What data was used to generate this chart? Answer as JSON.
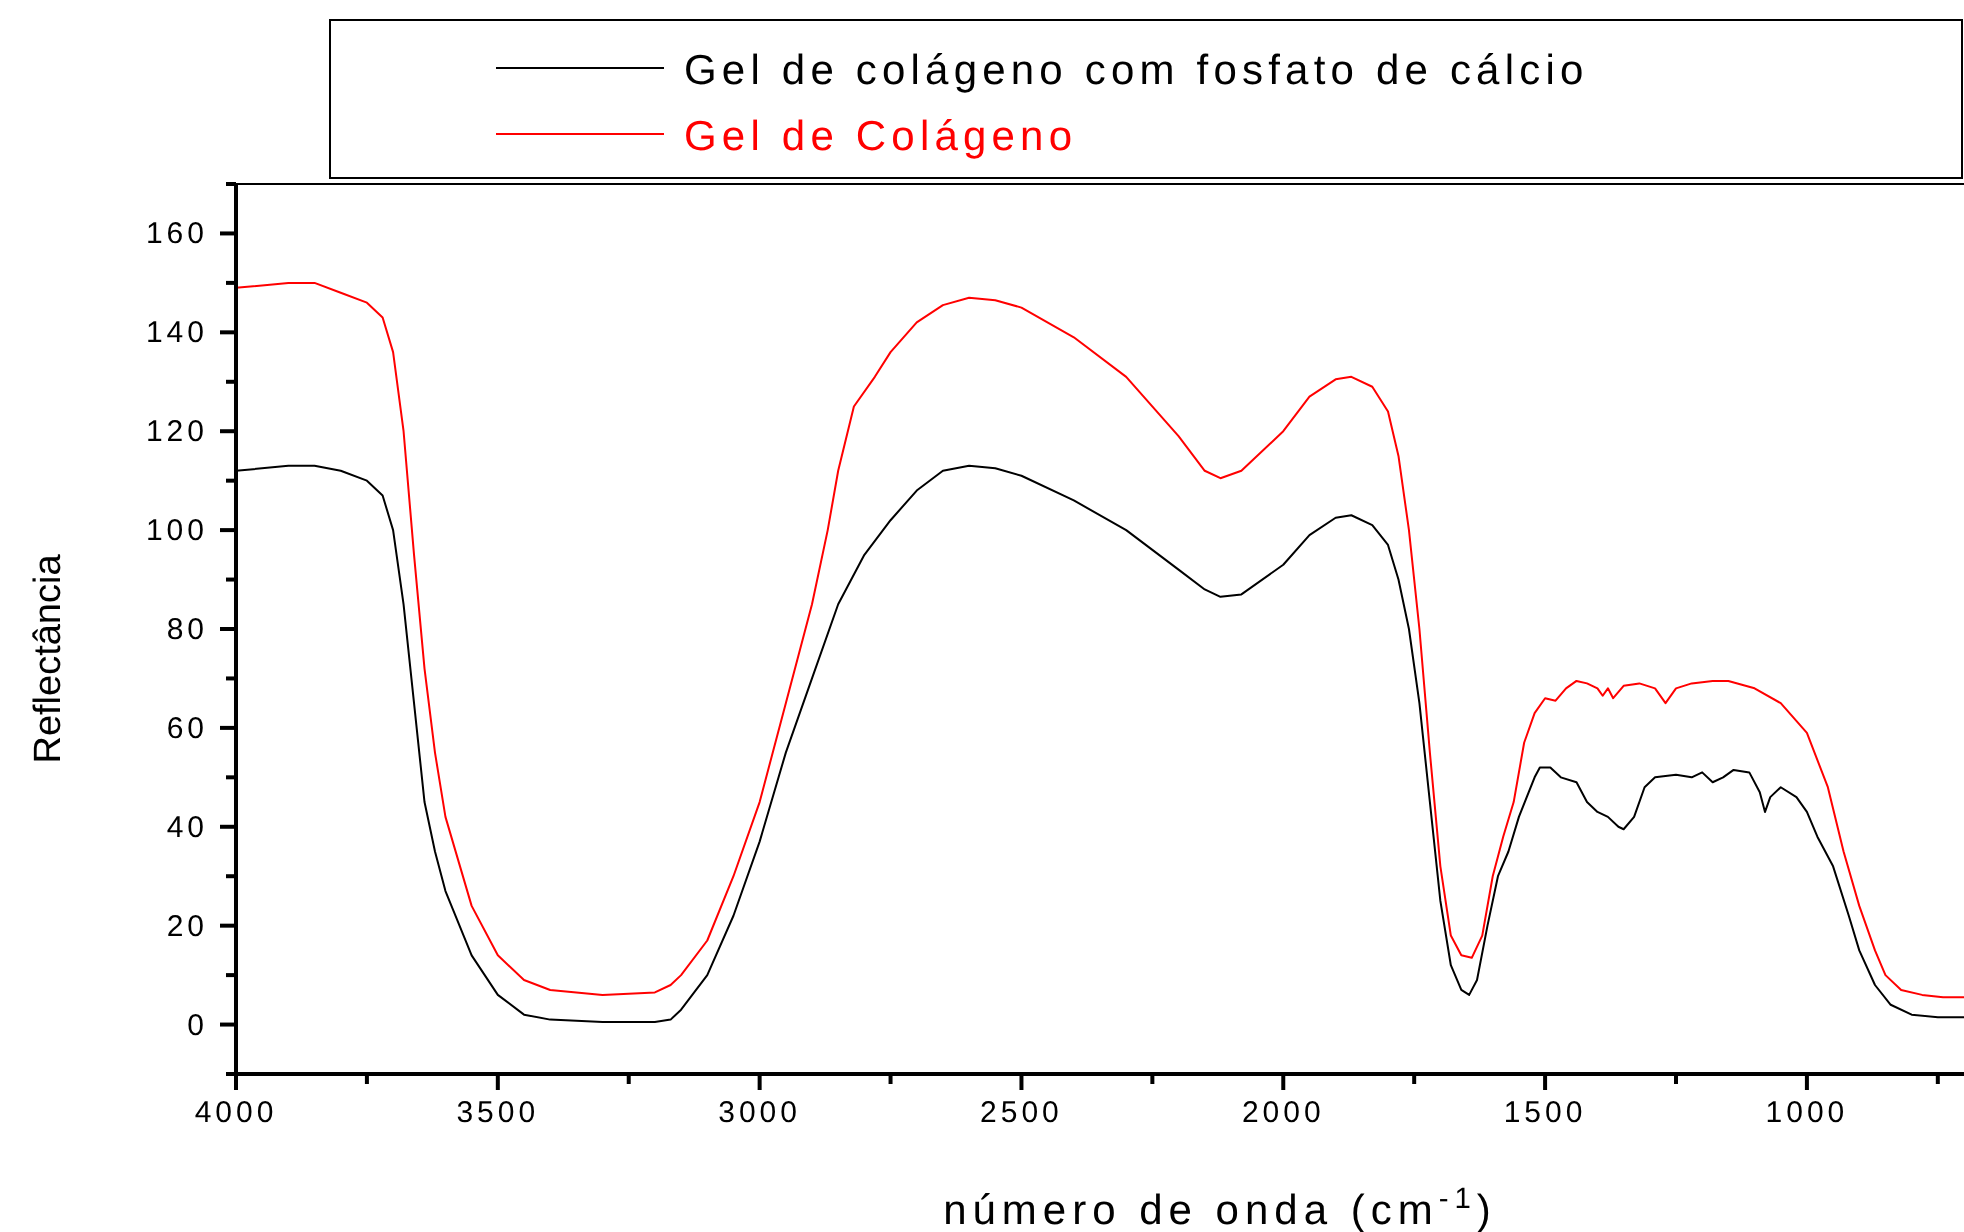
{
  "chart_data": {
    "type": "line",
    "xlabel": "número de onda (cm$^{-1}$)",
    "ylabel": "Reflectância",
    "legend": "top",
    "grid": false,
    "xlim": [
      4000,
      700
    ],
    "ylim": [
      -10,
      170
    ],
    "xticks": [
      4000,
      {
        "value": 3750,
        "label": null
      },
      3500,
      {
        "value": 3250,
        "label": null
      },
      3000,
      {
        "value": 2750,
        "label": null
      },
      2500,
      {
        "value": 2250,
        "label": null
      },
      2000,
      {
        "value": 1750,
        "label": null
      },
      1500,
      {
        "value": 1250,
        "label": null
      },
      1000,
      {
        "value": 750,
        "label": null
      }
    ],
    "yticks": [
      {
        "value": -10,
        "label": null
      },
      0,
      {
        "value": 10,
        "label": null
      },
      20,
      {
        "value": 30,
        "label": null
      },
      40,
      {
        "value": 50,
        "label": null
      },
      60,
      {
        "value": 70,
        "label": null
      },
      80,
      {
        "value": 90,
        "label": null
      },
      100,
      {
        "value": 110,
        "label": null
      },
      120,
      {
        "value": 130,
        "label": null
      },
      140,
      {
        "value": 150,
        "label": null
      },
      160,
      {
        "value": 170,
        "label": null
      }
    ],
    "series": [
      {
        "name": "Gel de colágeno com fosfato de cálcio",
        "color": "#000000",
        "x": [
          4000,
          3900,
          3850,
          3800,
          3750,
          3720,
          3700,
          3680,
          3660,
          3640,
          3620,
          3600,
          3550,
          3500,
          3450,
          3400,
          3300,
          3200,
          3170,
          3150,
          3100,
          3050,
          3000,
          2950,
          2900,
          2850,
          2800,
          2750,
          2700,
          2650,
          2600,
          2550,
          2500,
          2400,
          2300,
          2200,
          2150,
          2120,
          2080,
          2000,
          1950,
          1900,
          1870,
          1830,
          1800,
          1780,
          1760,
          1740,
          1720,
          1700,
          1680,
          1660,
          1645,
          1630,
          1610,
          1590,
          1570,
          1550,
          1520,
          1510,
          1490,
          1470,
          1440,
          1420,
          1400,
          1380,
          1360,
          1350,
          1330,
          1310,
          1290,
          1250,
          1220,
          1200,
          1180,
          1160,
          1140,
          1110,
          1090,
          1080,
          1070,
          1050,
          1020,
          1000,
          980,
          950,
          920,
          900,
          870,
          840,
          800,
          750,
          700
        ],
        "values": [
          112,
          113,
          113,
          112,
          110,
          107,
          100,
          85,
          65,
          45,
          35,
          27,
          14,
          6,
          2,
          1,
          0.5,
          0.5,
          1,
          3,
          10,
          22,
          37,
          55,
          70,
          85,
          95,
          102,
          108,
          112,
          113,
          112.5,
          111,
          106,
          100,
          92,
          88,
          86.5,
          87,
          93,
          99,
          102.5,
          103,
          101,
          97,
          90,
          80,
          65,
          45,
          25,
          12,
          7,
          6,
          9,
          20,
          30,
          35,
          42,
          50,
          52,
          52,
          50,
          49,
          45,
          43,
          42,
          40,
          39.5,
          42,
          48,
          50,
          50.5,
          50,
          51,
          49,
          50,
          51.5,
          51,
          47,
          43,
          46,
          48,
          46,
          43,
          38,
          32,
          22,
          15,
          8,
          4,
          2,
          1.5,
          1.5
        ]
      },
      {
        "name": "Gel de Colágeno",
        "color": "#ff0000",
        "x": [
          4000,
          3900,
          3850,
          3800,
          3750,
          3720,
          3700,
          3680,
          3660,
          3640,
          3620,
          3600,
          3550,
          3500,
          3450,
          3400,
          3300,
          3200,
          3170,
          3150,
          3100,
          3050,
          3000,
          2950,
          2900,
          2870,
          2850,
          2820,
          2780,
          2750,
          2700,
          2650,
          2600,
          2550,
          2500,
          2400,
          2300,
          2200,
          2150,
          2120,
          2080,
          2000,
          1950,
          1900,
          1870,
          1830,
          1800,
          1780,
          1760,
          1740,
          1720,
          1700,
          1680,
          1660,
          1640,
          1620,
          1600,
          1580,
          1560,
          1540,
          1520,
          1500,
          1480,
          1460,
          1440,
          1420,
          1400,
          1390,
          1380,
          1370,
          1350,
          1320,
          1290,
          1270,
          1250,
          1220,
          1180,
          1150,
          1100,
          1050,
          1000,
          960,
          930,
          900,
          870,
          850,
          820,
          780,
          740,
          700
        ],
        "values": [
          149,
          150,
          150,
          148,
          146,
          143,
          136,
          120,
          95,
          72,
          55,
          42,
          24,
          14,
          9,
          7,
          6,
          6.5,
          8,
          10,
          17,
          30,
          45,
          65,
          85,
          100,
          112,
          125,
          131,
          136,
          142,
          145.5,
          147,
          146.5,
          145,
          139,
          131,
          119,
          112,
          110.5,
          112,
          120,
          127,
          130.5,
          131,
          129,
          124,
          115,
          100,
          80,
          55,
          32,
          18,
          14,
          13.5,
          18,
          30,
          38,
          45,
          57,
          63,
          66,
          65.5,
          68,
          69.5,
          69,
          68,
          66.5,
          68,
          66,
          68.5,
          69,
          68,
          65,
          68,
          69,
          69.5,
          69.5,
          68,
          65,
          59,
          48,
          35,
          24,
          15,
          10,
          7,
          6,
          5.5,
          5.5
        ]
      }
    ]
  }
}
